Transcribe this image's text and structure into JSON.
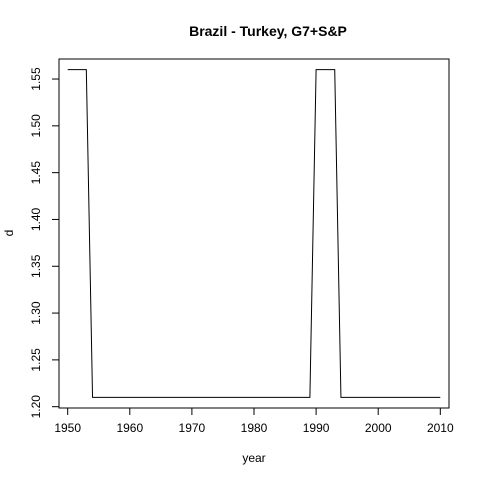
{
  "chart_data": {
    "type": "line",
    "title": "Brazil - Turkey, G7+S&P",
    "xlabel": "year",
    "ylabel": "d",
    "xlim": [
      1948.6,
      2011.4
    ],
    "ylim": [
      1.1986,
      1.5714
    ],
    "x_ticks": [
      1950,
      1960,
      1970,
      1980,
      1990,
      2000,
      2010
    ],
    "y_ticks": [
      1.2,
      1.25,
      1.3,
      1.35,
      1.4,
      1.45,
      1.5,
      1.55
    ],
    "x_tick_labels": [
      "1950",
      "1960",
      "1970",
      "1980",
      "1990",
      "2000",
      "2010"
    ],
    "y_tick_labels": [
      "1.20",
      "1.25",
      "1.30",
      "1.35",
      "1.40",
      "1.45",
      "1.50",
      "1.55"
    ],
    "grid": false,
    "line_color": "#000000",
    "series": [
      {
        "x": [
          1950,
          1951,
          1952,
          1953,
          1954,
          1955,
          1956,
          1957,
          1958,
          1959,
          1960,
          1961,
          1962,
          1963,
          1964,
          1965,
          1966,
          1967,
          1968,
          1969,
          1970,
          1971,
          1972,
          1973,
          1974,
          1975,
          1976,
          1977,
          1978,
          1979,
          1980,
          1981,
          1982,
          1983,
          1984,
          1985,
          1986,
          1987,
          1988,
          1989,
          1990,
          1991,
          1992,
          1993,
          1994,
          1995,
          1996,
          1997,
          1998,
          1999,
          2000,
          2001,
          2002,
          2003,
          2004,
          2005,
          2006,
          2007,
          2008,
          2009,
          2010
        ],
        "values": [
          1.56,
          1.56,
          1.56,
          1.56,
          1.21,
          1.21,
          1.21,
          1.21,
          1.21,
          1.21,
          1.21,
          1.21,
          1.21,
          1.21,
          1.21,
          1.21,
          1.21,
          1.21,
          1.21,
          1.21,
          1.21,
          1.21,
          1.21,
          1.21,
          1.21,
          1.21,
          1.21,
          1.21,
          1.21,
          1.21,
          1.21,
          1.21,
          1.21,
          1.21,
          1.21,
          1.21,
          1.21,
          1.21,
          1.21,
          1.21,
          1.56,
          1.56,
          1.56,
          1.56,
          1.21,
          1.21,
          1.21,
          1.21,
          1.21,
          1.21,
          1.21,
          1.21,
          1.21,
          1.21,
          1.21,
          1.21,
          1.21,
          1.21,
          1.21,
          1.21,
          1.21
        ]
      }
    ]
  }
}
